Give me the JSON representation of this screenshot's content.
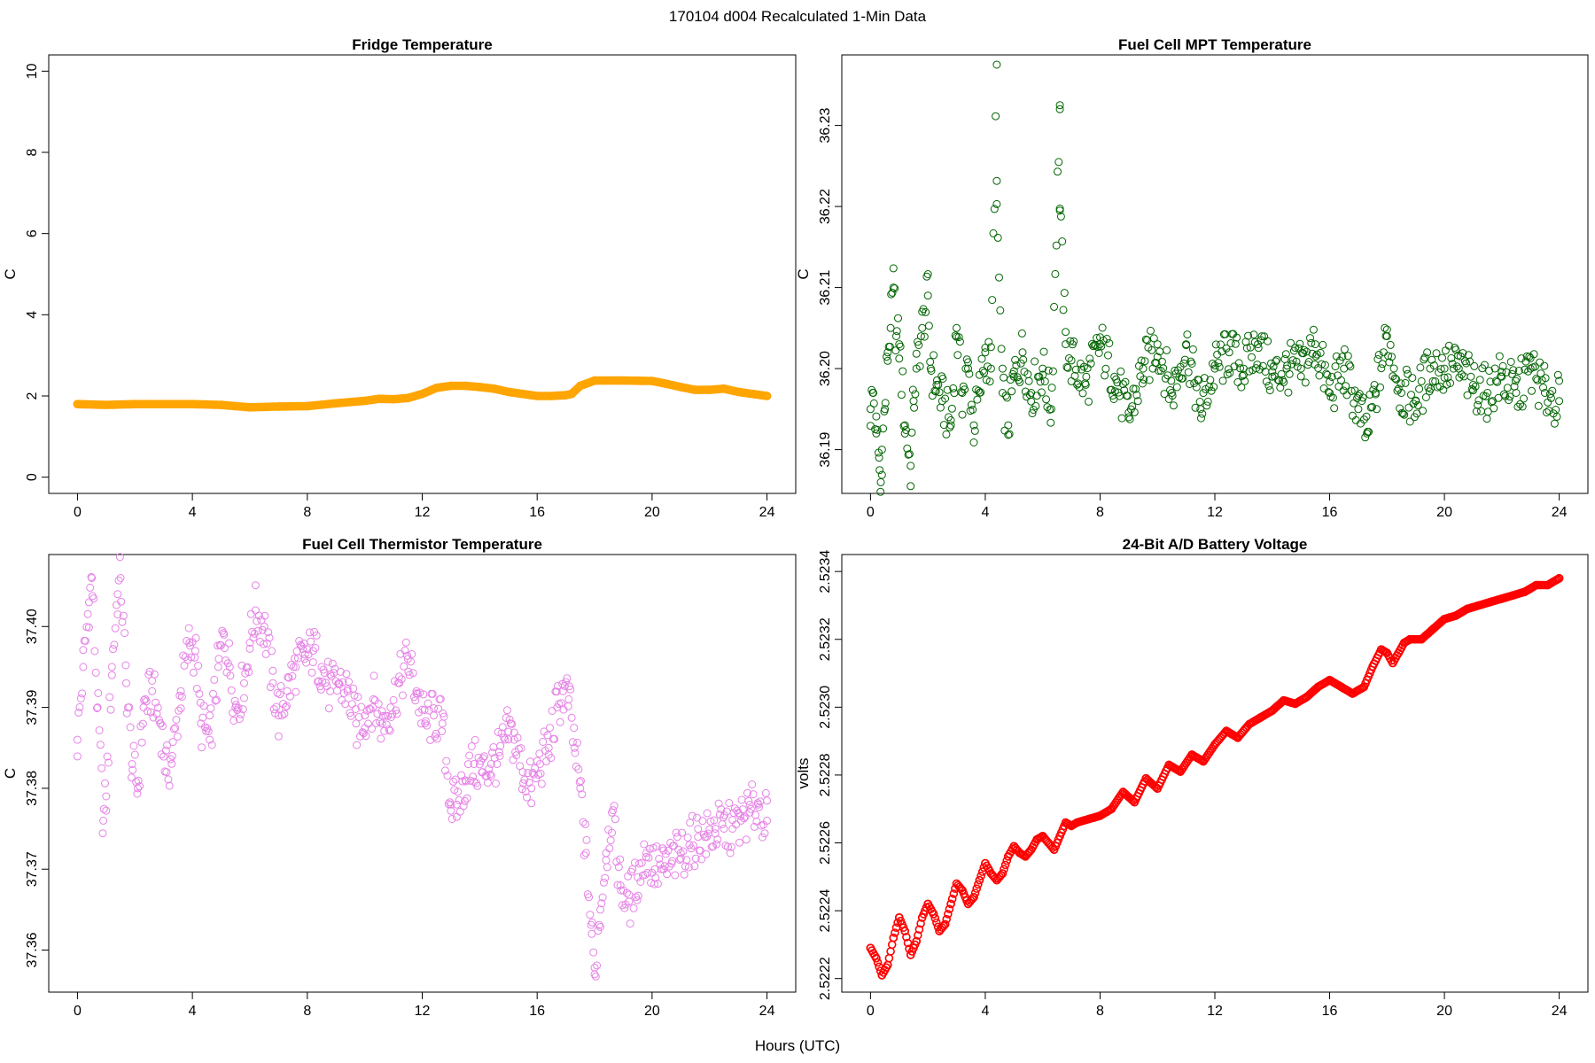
{
  "figure": {
    "title": "170104   d004   Recalculated 1-Min Data",
    "xlabel": "Hours (UTC)"
  },
  "chart_data": [
    {
      "id": "fridge",
      "type": "scatter",
      "title": "Fridge Temperature",
      "xlabel": "",
      "ylabel": "C",
      "xlim": [
        -1,
        25
      ],
      "ylim": [
        -0.4,
        10.4
      ],
      "xticks": [
        0,
        4,
        8,
        12,
        16,
        20,
        24
      ],
      "yticks": [
        0,
        2,
        4,
        6,
        8,
        10
      ],
      "ytick_labels": [
        "0",
        "2",
        "4",
        "6",
        "8",
        "10"
      ],
      "color": "#ffa500",
      "marker": "open-circle-dense",
      "x": [
        0,
        1,
        2,
        3,
        4,
        5,
        5.5,
        6,
        7,
        8,
        9,
        10,
        10.5,
        11,
        11.5,
        12,
        12.5,
        13,
        13.5,
        14,
        14.5,
        15,
        15.5,
        16,
        16.5,
        17,
        17.2,
        17.5,
        18,
        19,
        20,
        20.5,
        21,
        21.5,
        22,
        22.5,
        23,
        23.5,
        24
      ],
      "values": [
        1.8,
        1.78,
        1.8,
        1.8,
        1.8,
        1.78,
        1.75,
        1.72,
        1.74,
        1.75,
        1.82,
        1.88,
        1.93,
        1.92,
        1.95,
        2.05,
        2.2,
        2.25,
        2.25,
        2.22,
        2.18,
        2.1,
        2.05,
        2.0,
        2.0,
        2.02,
        2.05,
        2.25,
        2.38,
        2.38,
        2.37,
        2.3,
        2.22,
        2.15,
        2.15,
        2.18,
        2.1,
        2.05,
        2.0
      ]
    },
    {
      "id": "mpt",
      "type": "scatter",
      "title": "Fuel Cell MPT Temperature",
      "xlabel": "",
      "ylabel": "C",
      "xlim": [
        -1,
        25
      ],
      "ylim": [
        36.1846,
        36.2387
      ],
      "xticks": [
        0,
        4,
        8,
        12,
        16,
        20,
        24
      ],
      "yticks": [
        36.19,
        36.2,
        36.21,
        36.22,
        36.23
      ],
      "ytick_labels": [
        "36.19",
        "36.20",
        "36.21",
        "36.22",
        "36.23"
      ],
      "color": "#006400",
      "marker": "open-circle",
      "x": [
        0,
        0.1,
        0.2,
        0.3,
        0.35,
        0.4,
        0.5,
        0.6,
        0.7,
        0.8,
        0.9,
        1.0,
        1.2,
        1.4,
        1.5,
        1.6,
        1.8,
        2.0,
        2.1,
        2.3,
        2.5,
        2.8,
        3.0,
        3.2,
        3.4,
        3.6,
        3.8,
        4.0,
        4.2,
        4.4,
        4.4,
        4.6,
        4.8,
        5.0,
        5.3,
        5.6,
        6.0,
        6.3,
        6.6,
        6.6,
        6.6,
        6.8,
        7.0,
        7.5,
        8.0,
        8.5,
        9.0,
        9.5,
        10.0,
        10.5,
        11.0,
        11.5,
        12.0,
        12.5,
        13.0,
        13.5,
        14.0,
        14.5,
        15.0,
        15.5,
        16.0,
        16.5,
        17.0,
        17.3,
        17.6,
        18.0,
        18.5,
        19.0,
        19.5,
        20.0,
        20.5,
        21.0,
        21.5,
        22.0,
        22.5,
        23.0,
        23.5,
        24.0
      ],
      "values": [
        36.195,
        36.197,
        36.192,
        36.189,
        36.1848,
        36.19,
        36.195,
        36.202,
        36.205,
        36.21,
        36.204,
        36.203,
        36.193,
        36.188,
        36.196,
        36.2,
        36.205,
        36.209,
        36.2,
        36.198,
        36.196,
        36.193,
        36.205,
        36.197,
        36.2,
        36.193,
        36.197,
        36.202,
        36.2,
        36.2375,
        36.2203,
        36.197,
        36.193,
        36.199,
        36.202,
        36.197,
        36.2,
        36.195,
        36.2325,
        36.232,
        36.2195,
        36.203,
        36.201,
        36.198,
        36.203,
        36.199,
        36.194,
        36.2,
        36.203,
        36.197,
        36.203,
        36.195,
        36.2,
        36.202,
        36.2,
        36.203,
        36.199,
        36.2,
        36.2,
        36.203,
        36.197,
        36.2,
        36.195,
        36.192,
        36.197,
        36.204,
        36.197,
        36.196,
        36.2,
        36.2,
        36.2,
        36.198,
        36.197,
        36.199,
        36.197,
        36.2,
        36.197,
        36.196
      ]
    },
    {
      "id": "thermistor",
      "type": "scatter",
      "title": "Fuel Cell Thermistor Temperature",
      "xlabel": "",
      "ylabel": "C",
      "xlim": [
        -1,
        25
      ],
      "ylim": [
        37.3548,
        37.4089
      ],
      "xticks": [
        0,
        4,
        8,
        12,
        16,
        20,
        24
      ],
      "yticks": [
        37.36,
        37.37,
        37.38,
        37.39,
        37.4
      ],
      "ytick_labels": [
        "37.36",
        "37.37",
        "37.38",
        "37.39",
        "37.40"
      ],
      "color": "#e683e6",
      "marker": "open-circle",
      "x": [
        0,
        0.2,
        0.4,
        0.5,
        0.7,
        0.9,
        1.0,
        1.2,
        1.4,
        1.5,
        1.7,
        1.9,
        2.1,
        2.3,
        2.6,
        2.9,
        3.1,
        3.3,
        3.6,
        3.9,
        4.1,
        4.3,
        4.6,
        4.9,
        5.1,
        5.3,
        5.5,
        5.8,
        6.0,
        6.2,
        6.5,
        6.8,
        7.0,
        7.3,
        7.6,
        7.9,
        8.2,
        8.5,
        8.8,
        9.1,
        9.4,
        9.7,
        10.0,
        10.3,
        10.6,
        10.9,
        11.2,
        11.5,
        11.8,
        12.1,
        12.4,
        12.7,
        13.0,
        13.2,
        13.5,
        13.8,
        14.1,
        14.4,
        14.7,
        15.0,
        15.2,
        15.5,
        15.8,
        16.1,
        16.4,
        16.7,
        16.9,
        17.1,
        17.3,
        17.5,
        17.7,
        17.9,
        18.0,
        18.2,
        18.4,
        18.6,
        18.9,
        19.2,
        19.5,
        19.8,
        20.1,
        20.4,
        20.7,
        21.0,
        21.3,
        21.6,
        21.9,
        22.2,
        22.5,
        22.8,
        23.1,
        23.4,
        23.7,
        24.0
      ],
      "values": [
        37.386,
        37.395,
        37.403,
        37.406,
        37.39,
        37.376,
        37.379,
        37.395,
        37.404,
        37.406,
        37.393,
        37.383,
        37.38,
        37.39,
        37.392,
        37.388,
        37.382,
        37.384,
        37.392,
        37.398,
        37.397,
        37.388,
        37.386,
        37.395,
        37.399,
        37.395,
        37.39,
        37.393,
        37.398,
        37.402,
        37.4,
        37.393,
        37.389,
        37.392,
        37.395,
        37.396,
        37.397,
        37.395,
        37.392,
        37.393,
        37.392,
        37.388,
        37.389,
        37.391,
        37.388,
        37.39,
        37.393,
        37.396,
        37.392,
        37.388,
        37.389,
        37.388,
        37.378,
        37.378,
        37.381,
        37.383,
        37.382,
        37.383,
        37.384,
        37.387,
        37.386,
        37.382,
        37.38,
        37.383,
        37.385,
        37.39,
        37.392,
        37.391,
        37.385,
        37.38,
        37.372,
        37.362,
        37.357,
        37.365,
        37.372,
        37.377,
        37.368,
        37.366,
        37.369,
        37.372,
        37.37,
        37.37,
        37.371,
        37.372,
        37.373,
        37.374,
        37.374,
        37.375,
        37.375,
        37.375,
        37.376,
        37.377,
        37.378,
        37.376
      ]
    },
    {
      "id": "battery",
      "type": "scatter",
      "title": "24-Bit A/D Battery Voltage",
      "xlabel": "",
      "ylabel": "volts",
      "xlim": [
        -1,
        25
      ],
      "ylim": [
        2.52216,
        2.52345
      ],
      "xticks": [
        0,
        4,
        8,
        12,
        16,
        20,
        24
      ],
      "yticks": [
        2.5222,
        2.5224,
        2.5226,
        2.5228,
        2.523,
        2.5232,
        2.5234
      ],
      "ytick_labels": [
        "2.5222",
        "2.5224",
        "2.5226",
        "2.5228",
        "2.5230",
        "2.5232",
        "2.5234"
      ],
      "color": "#ff0000",
      "marker": "open-circle-dense",
      "x": [
        0,
        0.2,
        0.4,
        0.6,
        0.8,
        1.0,
        1.2,
        1.4,
        1.6,
        1.8,
        2.0,
        2.2,
        2.4,
        2.6,
        2.8,
        3.0,
        3.2,
        3.4,
        3.6,
        3.8,
        4.0,
        4.2,
        4.4,
        4.6,
        4.8,
        5.0,
        5.2,
        5.4,
        5.6,
        5.8,
        6.0,
        6.2,
        6.4,
        6.6,
        6.8,
        7.0,
        7.2,
        7.6,
        8.0,
        8.4,
        8.8,
        9.2,
        9.6,
        10.0,
        10.4,
        10.8,
        11.2,
        11.6,
        12.0,
        12.4,
        12.8,
        13.2,
        13.6,
        14.0,
        14.4,
        14.8,
        15.2,
        15.6,
        16.0,
        16.4,
        16.8,
        17.2,
        17.5,
        17.8,
        18.0,
        18.2,
        18.4,
        18.6,
        18.8,
        19.2,
        19.6,
        20.0,
        20.4,
        20.8,
        21.2,
        21.6,
        22.0,
        22.4,
        22.8,
        23.2,
        23.6,
        24.0
      ],
      "values": [
        2.52229,
        2.52226,
        2.52221,
        2.52224,
        2.52232,
        2.52238,
        2.52234,
        2.52227,
        2.52231,
        2.52238,
        2.52242,
        2.52239,
        2.52234,
        2.52236,
        2.52242,
        2.52248,
        2.52246,
        2.52242,
        2.52244,
        2.52249,
        2.52254,
        2.52251,
        2.52249,
        2.52251,
        2.52256,
        2.52259,
        2.52257,
        2.52256,
        2.52258,
        2.52261,
        2.52262,
        2.5226,
        2.52258,
        2.52262,
        2.52266,
        2.52265,
        2.52266,
        2.52267,
        2.52268,
        2.5227,
        2.52275,
        2.52272,
        2.52279,
        2.52276,
        2.52283,
        2.52281,
        2.52286,
        2.52284,
        2.52289,
        2.52293,
        2.52291,
        2.52295,
        2.52297,
        2.52299,
        2.52302,
        2.52301,
        2.52303,
        2.52306,
        2.52308,
        2.52306,
        2.52304,
        2.52306,
        2.52312,
        2.52317,
        2.52316,
        2.52313,
        2.52316,
        2.52319,
        2.5232,
        2.5232,
        2.52323,
        2.52326,
        2.52327,
        2.52329,
        2.5233,
        2.52331,
        2.52332,
        2.52333,
        2.52334,
        2.52336,
        2.52336,
        2.52338
      ]
    }
  ]
}
